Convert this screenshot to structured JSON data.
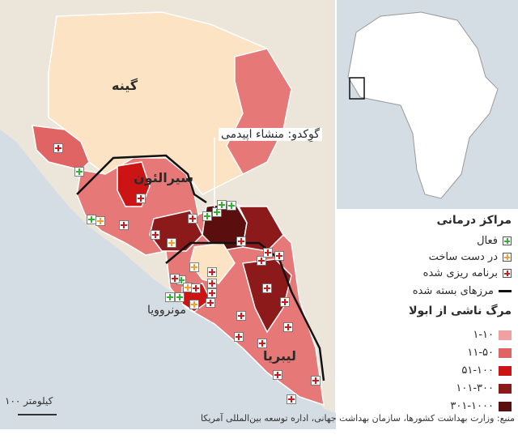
{
  "labels": {
    "guinea": "گینه",
    "sierra_leone": "سیرالئون",
    "liberia": "لیبریا",
    "monrovia": "مونروویا",
    "gueckedou": "گوِکدو: منشاء اپیدمی"
  },
  "legend": {
    "treatment_title": "مراکز درمانی",
    "active": "فعال",
    "under_construction": "در دست ساخت",
    "planned": "برنامه ریزی شده",
    "closed_borders": "مرزهای بسته شده",
    "deaths_title": "مرگ ناشی از ابولا",
    "ranges": [
      {
        "label": "۱-۱۰",
        "color": "#f0a0a0"
      },
      {
        "label": "۱۱-۵۰",
        "color": "#e06464"
      },
      {
        "label": "۵۱-۱۰۰",
        "color": "#cc1414"
      },
      {
        "label": "۱۰۱-۳۰۰",
        "color": "#8c1a1a"
      },
      {
        "label": "۳۰۱-۱۰۰۰",
        "color": "#5a0e0e"
      }
    ],
    "cross_colors": {
      "active": "#2fb22f",
      "construction": "#f0a030",
      "planned": "#cc1a1a"
    }
  },
  "scale": "۱۰۰ کیلومتر",
  "source": "منبع: وزارت بهداشت کشورها، سازمان بهداشت جهانی،   اداره توسعه بین‌المللی آمریکا",
  "colors": {
    "sea": "#d4dce4",
    "land_unaffected": "#fbe3c3",
    "other_land": "#ece6da"
  }
}
